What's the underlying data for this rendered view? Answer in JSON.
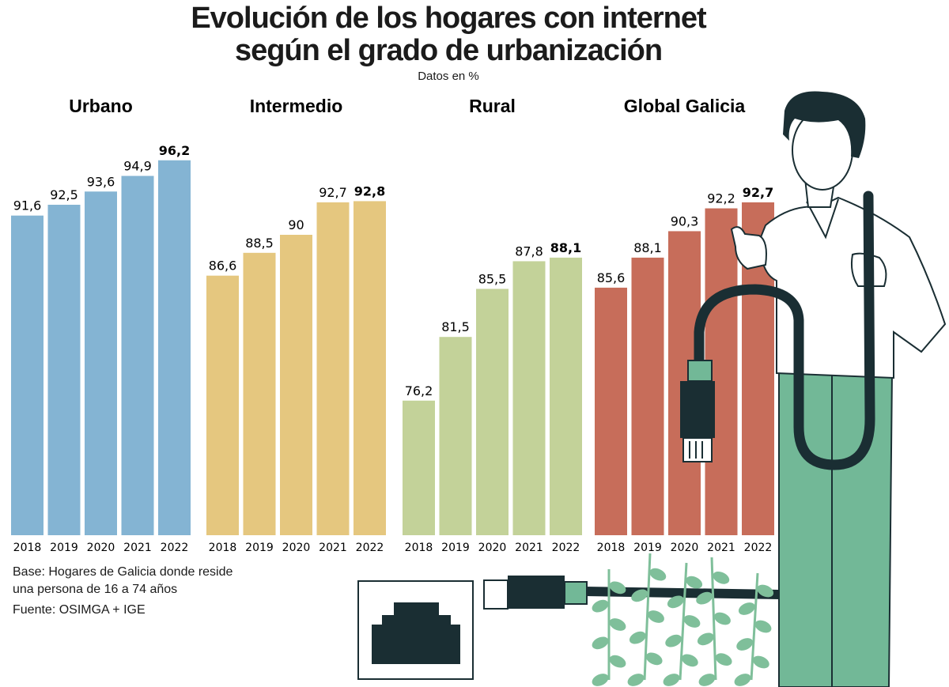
{
  "title_line1": "Evolución de los hogares con internet",
  "title_line2": "según el grado de urbanización",
  "subtitle": "Datos en %",
  "notes": {
    "base_line1": "Base: Hogares de Galicia donde reside",
    "base_line2": "una persona de 16 a 74 años",
    "source": "Fuente: OSIMGA + IGE"
  },
  "colors": {
    "urbano": "#84b4d3",
    "intermedio": "#e5c77f",
    "rural": "#c3d299",
    "global": "#c76d5a",
    "ink": "#1a2e33",
    "pants": "#72b897",
    "leaf": "#7fbf9a"
  },
  "chart_data": {
    "type": "bar",
    "ylim": [
      65,
      100
    ],
    "categories": [
      "2018",
      "2019",
      "2020",
      "2021",
      "2022"
    ],
    "series": [
      {
        "name": "Urbano",
        "values": [
          91.6,
          92.5,
          93.6,
          94.9,
          96.2
        ],
        "labels": [
          "91,6",
          "92,5",
          "93,6",
          "94,9",
          "96,2"
        ]
      },
      {
        "name": "Intermedio",
        "values": [
          86.6,
          88.5,
          90,
          92.7,
          92.8
        ],
        "labels": [
          "86,6",
          "88,5",
          "90",
          "92,7",
          "92,8"
        ]
      },
      {
        "name": "Rural",
        "values": [
          76.2,
          81.5,
          85.5,
          87.8,
          88.1
        ],
        "labels": [
          "76,2",
          "81,5",
          "85,5",
          "87,8",
          "88,1"
        ]
      },
      {
        "name": "Global Galicia",
        "values": [
          85.6,
          88.1,
          90.3,
          92.2,
          92.7
        ],
        "labels": [
          "85,6",
          "88,1",
          "90,3",
          "92,2",
          "92,7"
        ]
      }
    ]
  }
}
